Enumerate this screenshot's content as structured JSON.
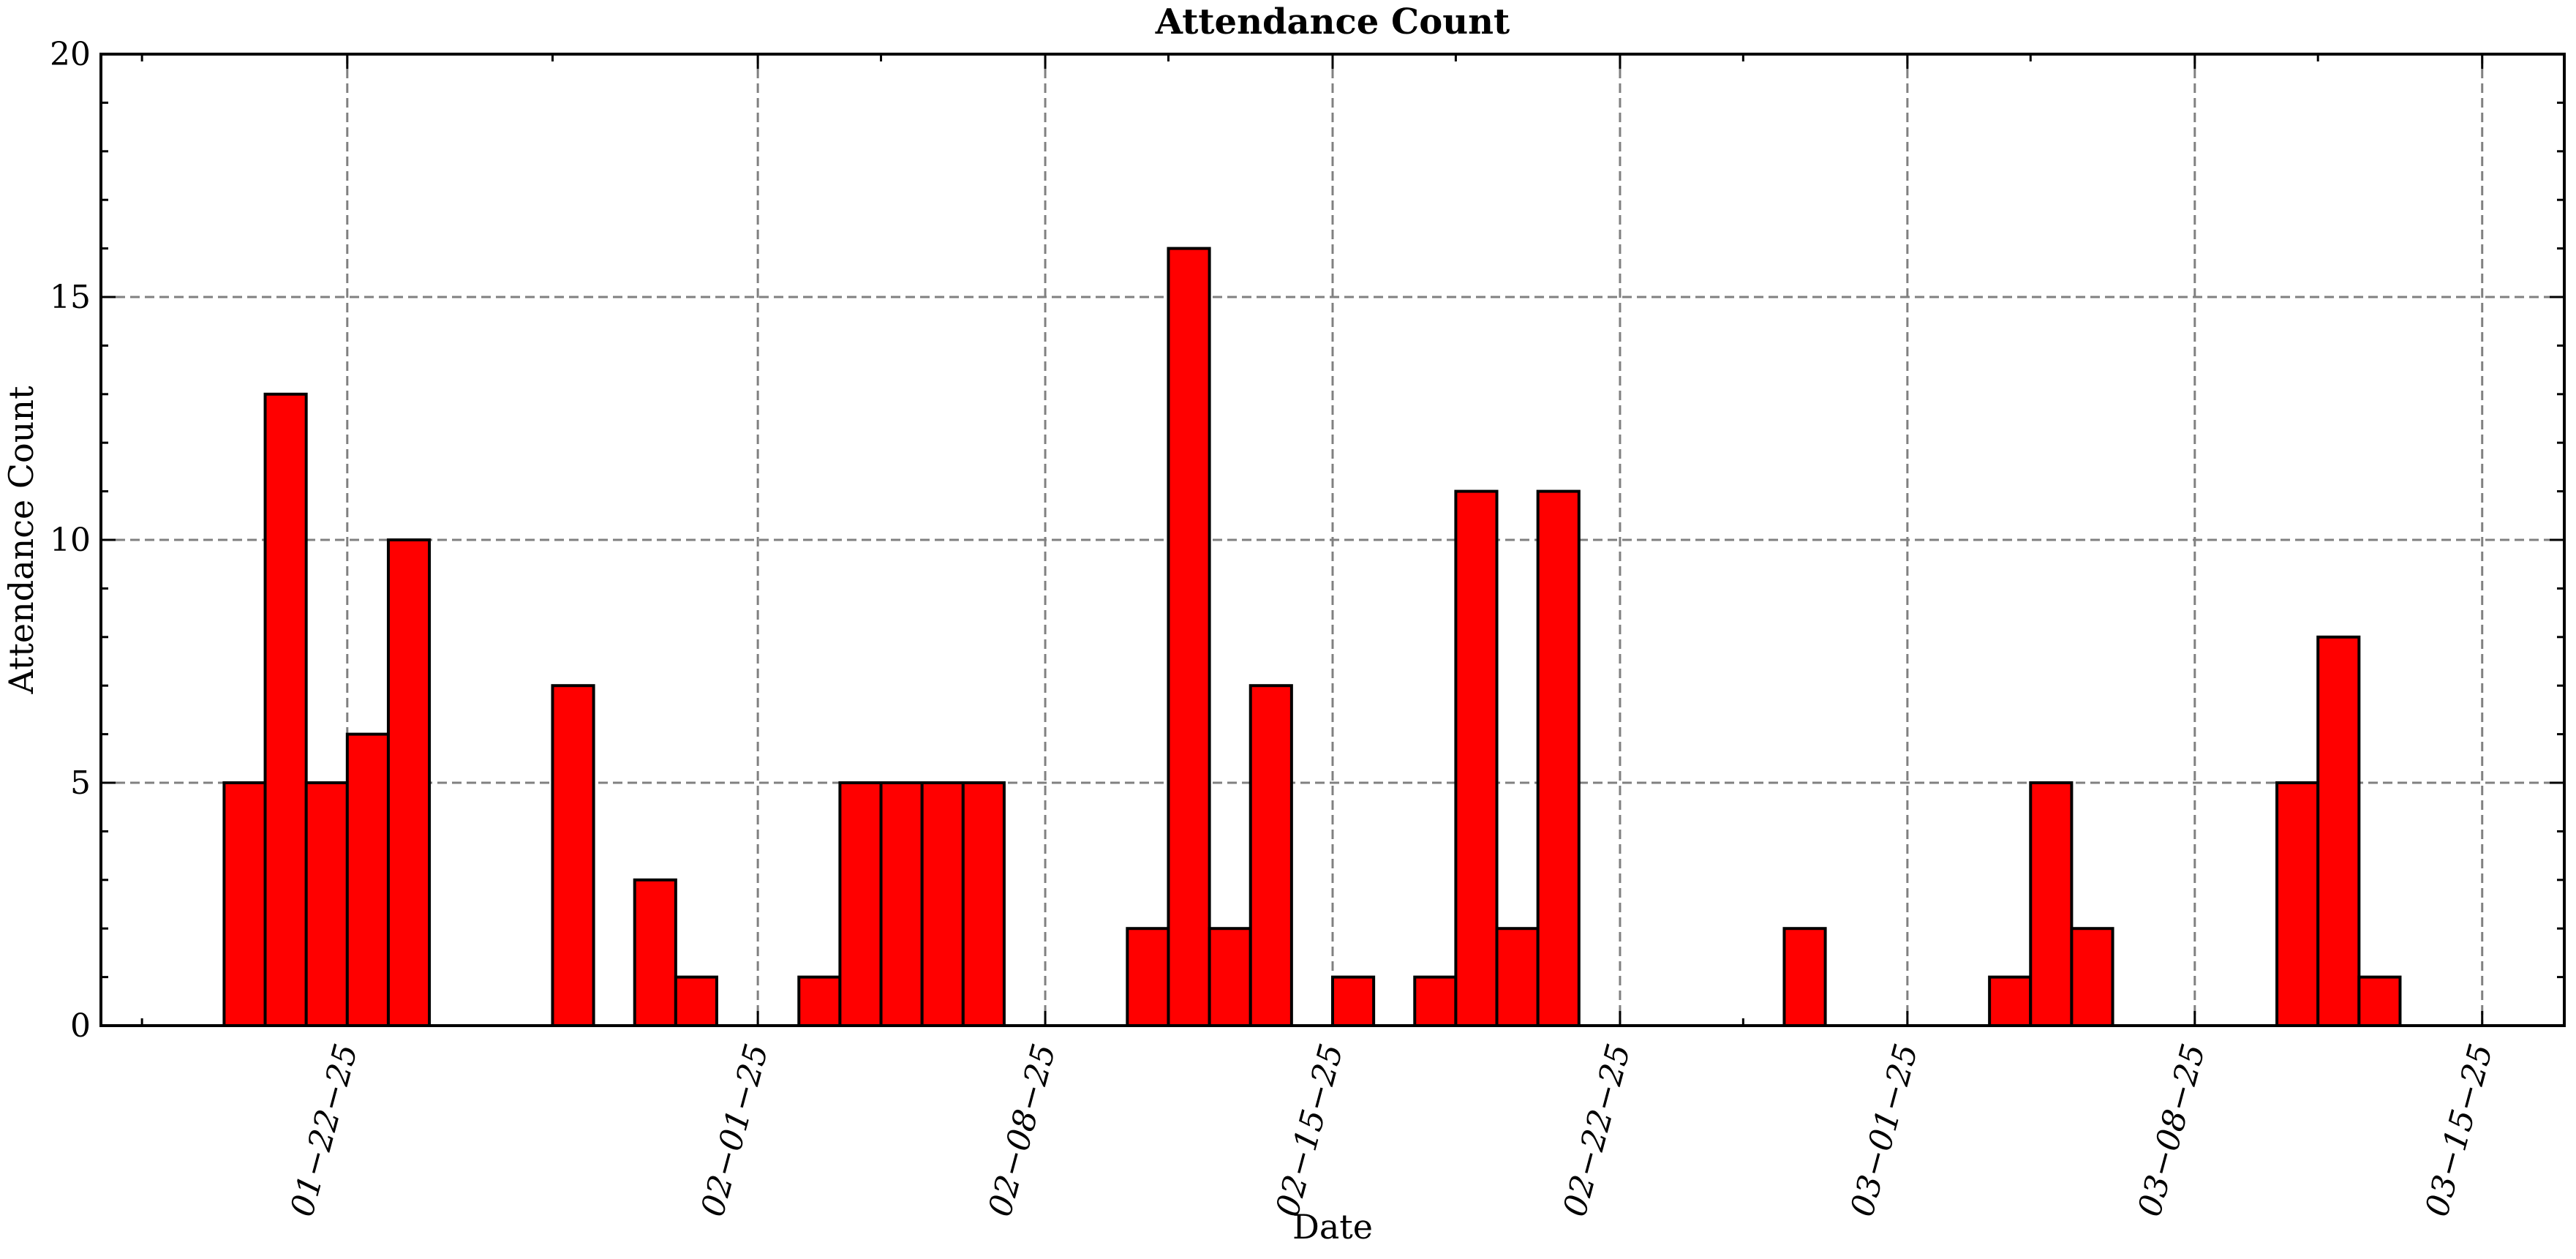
{
  "chart_data": {
    "type": "bar",
    "title": "Attendance Count",
    "xlabel": "Date",
    "ylabel": "Attendance Count",
    "ylim": [
      0,
      20
    ],
    "xlim": [
      "2025-01-16",
      "2025-03-17"
    ],
    "y_ticks": [
      0,
      5,
      10,
      15,
      20
    ],
    "y_tick_labels": [
      "0",
      "5",
      "10",
      "15",
      "20"
    ],
    "x_ticks": [
      "2025-01-22",
      "2025-02-01",
      "2025-02-08",
      "2025-02-15",
      "2025-02-22",
      "2025-03-01",
      "2025-03-08",
      "2025-03-15"
    ],
    "x_tick_labels": [
      "01−22−25",
      "02−01−25",
      "02−08−25",
      "02−15−25",
      "02−22−25",
      "03−01−25",
      "03−08−25",
      "03−15−25"
    ],
    "grid": true,
    "bar_color": "#ff0000",
    "edge_color": "#000000",
    "categories": [
      "2025-01-19",
      "2025-01-20",
      "2025-01-21",
      "2025-01-22",
      "2025-01-23",
      "2025-01-27",
      "2025-01-29",
      "2025-01-30",
      "2025-02-02",
      "2025-02-03",
      "2025-02-04",
      "2025-02-05",
      "2025-02-06",
      "2025-02-10",
      "2025-02-11",
      "2025-02-12",
      "2025-02-13",
      "2025-02-15",
      "2025-02-17",
      "2025-02-18",
      "2025-02-19",
      "2025-02-20",
      "2025-02-26",
      "2025-03-03",
      "2025-03-04",
      "2025-03-05",
      "2025-03-10",
      "2025-03-11",
      "2025-03-12"
    ],
    "values": [
      5,
      13,
      5,
      6,
      10,
      7,
      3,
      1,
      1,
      5,
      5,
      5,
      5,
      2,
      16,
      2,
      7,
      1,
      1,
      11,
      2,
      11,
      2,
      1,
      5,
      2,
      5,
      8,
      1
    ]
  }
}
